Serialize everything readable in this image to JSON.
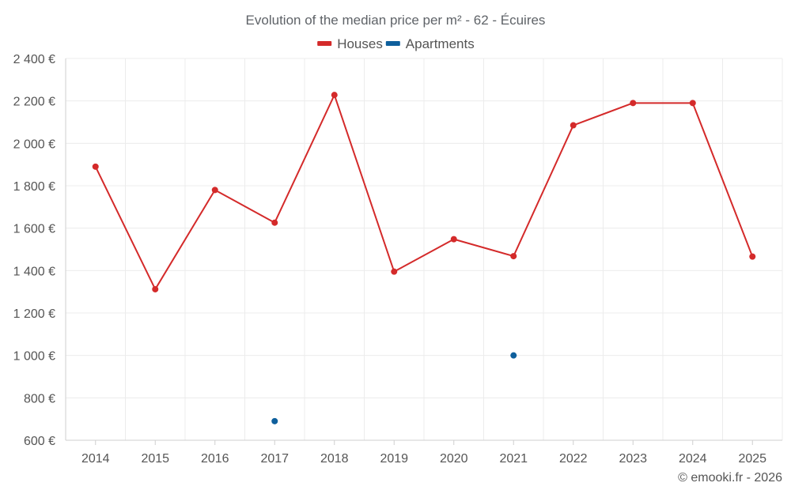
{
  "chart_data": {
    "type": "line",
    "title": "Evolution of the median price per m² - 62 - Écuires",
    "categories": [
      "2014",
      "2015",
      "2016",
      "2017",
      "2018",
      "2019",
      "2020",
      "2021",
      "2022",
      "2023",
      "2024",
      "2025"
    ],
    "series": [
      {
        "name": "Houses",
        "color": "#d42a2a",
        "values": [
          1890,
          1312,
          1780,
          1626,
          2228,
          1395,
          1548,
          1468,
          2085,
          2190,
          2190,
          1466
        ],
        "connect_line": true
      },
      {
        "name": "Apartments",
        "color": "#0e5f9c",
        "values": [
          null,
          null,
          null,
          690,
          null,
          null,
          null,
          1000,
          null,
          null,
          null,
          null
        ],
        "connect_line": false
      }
    ],
    "ylim": [
      600,
      2400
    ],
    "yticks": [
      600,
      800,
      1000,
      1200,
      1400,
      1600,
      1800,
      2000,
      2200,
      2400
    ],
    "y_unit": "€",
    "legend_position": "top-center",
    "grid": true,
    "credit": "© emooki.fr - 2026"
  }
}
